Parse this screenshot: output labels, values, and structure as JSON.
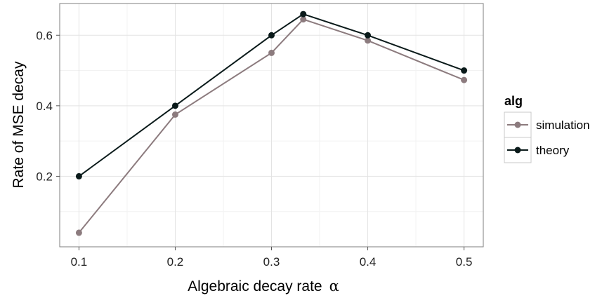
{
  "chart_data": {
    "type": "line",
    "xlabel": "Algebraic decay rate",
    "xlabel_symbol": "α",
    "ylabel": "Rate of MSE decay",
    "xlim": [
      0.08,
      0.52
    ],
    "ylim": [
      0.0,
      0.69
    ],
    "x_ticks": [
      0.1,
      0.2,
      0.3,
      0.4,
      0.5
    ],
    "x_tick_labels": [
      "0.1",
      "0.2",
      "0.3",
      "0.4",
      "0.5"
    ],
    "y_ticks": [
      0.2,
      0.4,
      0.6
    ],
    "y_tick_labels": [
      "0.2",
      "0.4",
      "0.6"
    ],
    "grid": true,
    "legend": {
      "title": "alg",
      "position": "right"
    },
    "series": [
      {
        "name": "simulation",
        "color": "#8c7b7e",
        "x": [
          0.1,
          0.2,
          0.3,
          0.333,
          0.4,
          0.5
        ],
        "y": [
          0.04,
          0.375,
          0.55,
          0.645,
          0.585,
          0.473
        ]
      },
      {
        "name": "theory",
        "color": "#0a1a1a",
        "x": [
          0.1,
          0.2,
          0.3,
          0.333,
          0.4,
          0.5
        ],
        "y": [
          0.2,
          0.4,
          0.6,
          0.66,
          0.6,
          0.5
        ]
      }
    ]
  }
}
